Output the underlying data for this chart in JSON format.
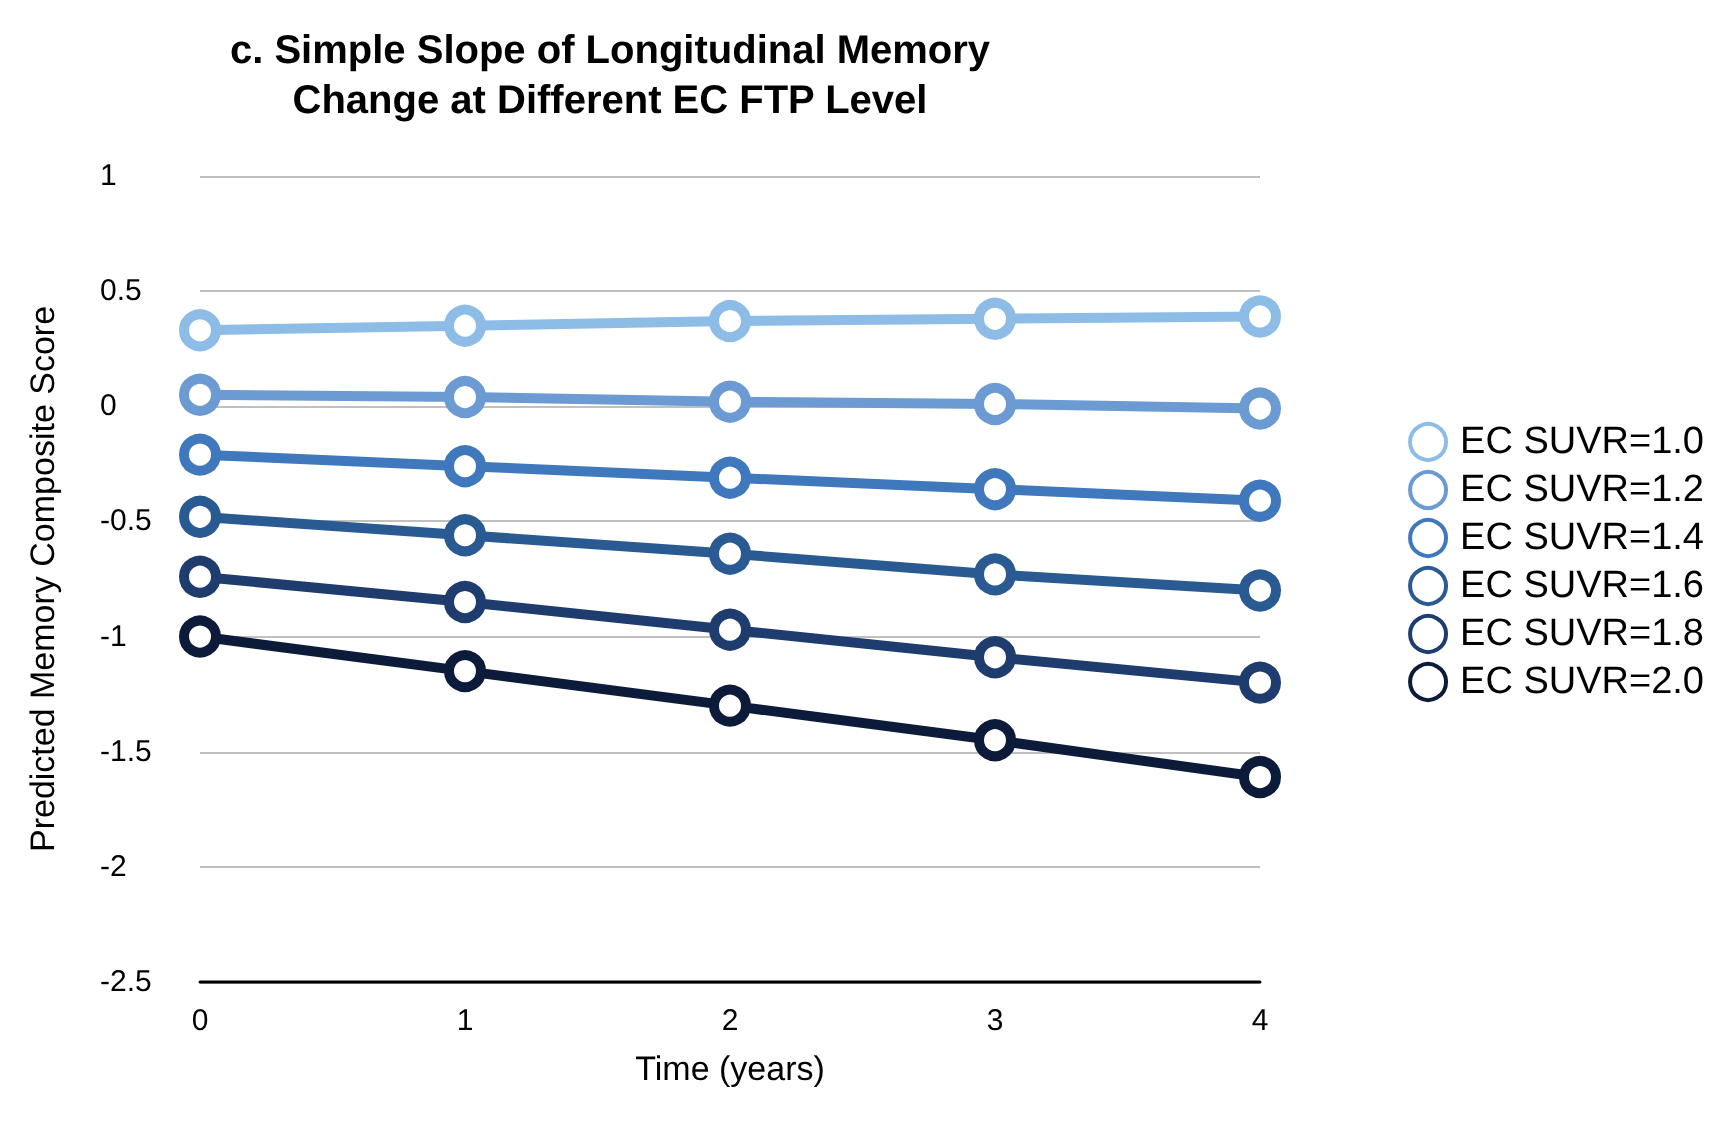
{
  "chart_data": {
    "type": "line",
    "title": "c. Simple Slope of Longitudinal Memory\nChange at Different EC FTP Level",
    "xlabel": "Time (years)",
    "ylabel": "Predicted Memory Composite Score",
    "categories": [
      "0",
      "1",
      "2",
      "3",
      "4"
    ],
    "series": [
      {
        "name": "EC SUVR=1.0",
        "color": "#8dbde6",
        "values": [
          0.33,
          0.35,
          0.37,
          0.38,
          0.39
        ]
      },
      {
        "name": "EC SUVR=1.2",
        "color": "#6b9bd2",
        "values": [
          0.05,
          0.04,
          0.02,
          0.01,
          -0.01
        ]
      },
      {
        "name": "EC SUVR=1.4",
        "color": "#3f78bd",
        "values": [
          -0.21,
          -0.26,
          -0.31,
          -0.36,
          -0.41
        ]
      },
      {
        "name": "EC SUVR=1.6",
        "color": "#2a5a92",
        "values": [
          -0.48,
          -0.56,
          -0.64,
          -0.73,
          -0.8
        ]
      },
      {
        "name": "EC SUVR=1.8",
        "color": "#1e3c6e",
        "values": [
          -0.74,
          -0.85,
          -0.97,
          -1.09,
          -1.2
        ]
      },
      {
        "name": "EC SUVR=2.0",
        "color": "#0d1b3a",
        "values": [
          -1.0,
          -1.15,
          -1.3,
          -1.45,
          -1.61
        ]
      }
    ],
    "ylim": [
      -2.5,
      1
    ],
    "yticks": [
      -2.5,
      -2,
      -1.5,
      -1,
      -0.5,
      0,
      0.5,
      1
    ],
    "grid": "y",
    "legend": "right",
    "marker": "circle",
    "line_style": "solid"
  }
}
